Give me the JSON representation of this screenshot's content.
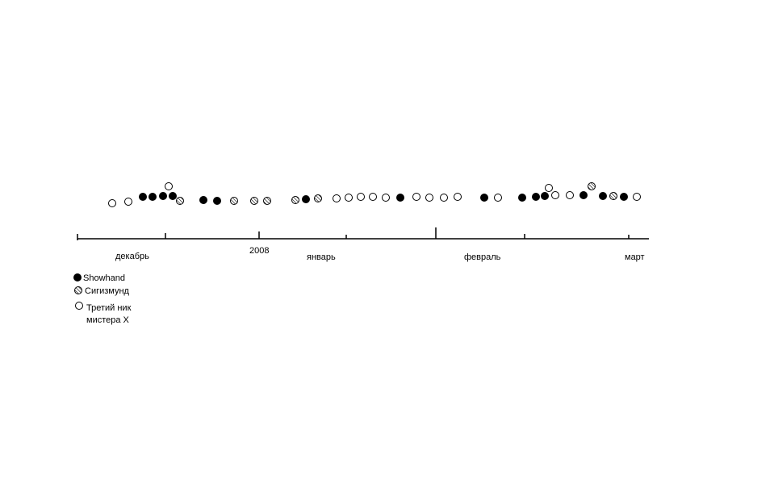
{
  "chart_data": {
    "type": "scatter",
    "year_label": "2008",
    "months": [
      "декабрь",
      "январь",
      "февраль",
      "март"
    ],
    "legend": [
      {
        "key": "showhand",
        "label": "Showhand",
        "fill": "solid"
      },
      {
        "key": "sigismund",
        "label": "Сигизмунд",
        "fill": "hatched"
      },
      {
        "key": "third",
        "label": "Третий  ник",
        "label2": "мистера Х",
        "fill": "open"
      }
    ],
    "colors": {
      "ink": "#000000",
      "background": "#ffffff"
    },
    "series": [
      {
        "key": "third",
        "x": [
          139,
          159,
          209,
          417,
          432,
          447,
          462,
          478,
          516,
          532,
          550,
          567,
          617,
          680,
          688,
          706,
          789
        ],
        "y": [
          252,
          250,
          231,
          246,
          245,
          244,
          244,
          245,
          244,
          245,
          245,
          244,
          245,
          233,
          242,
          242,
          244
        ]
      },
      {
        "key": "showhand",
        "x": [
          177,
          189,
          202,
          214,
          252,
          269,
          379,
          496,
          600,
          647,
          664,
          675,
          723,
          747,
          773
        ],
        "y": [
          244,
          244,
          243,
          243,
          248,
          249,
          247,
          245,
          245,
          245,
          244,
          243,
          242,
          243,
          244
        ]
      },
      {
        "key": "sigismund",
        "x": [
          223,
          290,
          315,
          331,
          366,
          394,
          733,
          760
        ],
        "y": [
          249,
          249,
          249,
          249,
          248,
          246,
          231,
          243
        ]
      }
    ]
  }
}
